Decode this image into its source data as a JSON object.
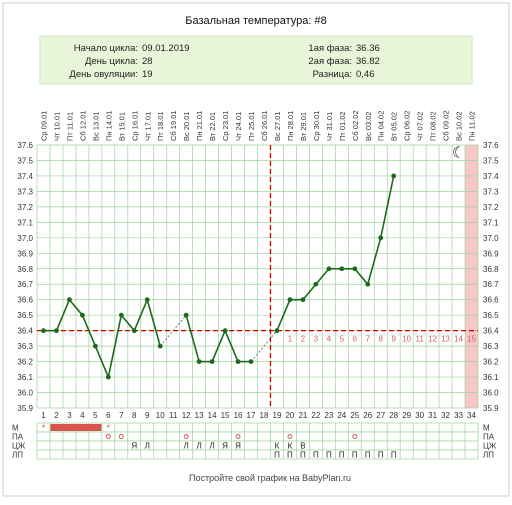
{
  "header": {
    "title": "Базальная температура: #8"
  },
  "summary": {
    "cycle_start_label": "Начало цикла:",
    "cycle_start": "09.01.2019",
    "cycle_day_label": "День цикла:",
    "cycle_day": "28",
    "ovulation_day_label": "День овуляции:",
    "ovulation_day": "19",
    "phase1_label": "1ая фаза:",
    "phase1": "36.36",
    "phase2_label": "2ая фаза:",
    "phase2": "36.82",
    "difference_label": "Разница:",
    "difference": "0,46"
  },
  "footer": {
    "text": "Постройте свой график на BabyPlan.ru"
  },
  "colors": {
    "line": "#1a6b1a",
    "grid": "#9fd09f",
    "coverline": "#cc0000",
    "phase2_numbers": "#d06060",
    "header_bg": "#e8f5d8",
    "period_fill": "#d9534f",
    "pink_band": "#f7c6c6"
  },
  "chart_data": {
    "type": "line",
    "ylim": [
      35.9,
      37.6
    ],
    "y_ticks": [
      "37.6",
      "37.5",
      "37.4",
      "37.3",
      "37.2",
      "37.1",
      "37.0",
      "36.9",
      "36.8",
      "36.7",
      "36.6",
      "36.5",
      "36.4",
      "36.3",
      "36.2",
      "36.1",
      "36.0",
      "35.9"
    ],
    "x_days": [
      "1",
      "2",
      "3",
      "4",
      "5",
      "6",
      "7",
      "8",
      "9",
      "10",
      "11",
      "12",
      "13",
      "14",
      "15",
      "16",
      "17",
      "18",
      "19",
      "20",
      "21",
      "22",
      "23",
      "24",
      "25",
      "26",
      "27",
      "28",
      "29",
      "30",
      "31",
      "32",
      "33",
      "34"
    ],
    "dates": [
      "Ср 09.01",
      "Чт 10.01",
      "Пт 11.01",
      "Сб 12.01",
      "Вс 13.01",
      "Пн 14.01",
      "Вт 15.01",
      "Ср 16.01",
      "Чт 17.01",
      "Пт 18.01",
      "Сб 19.01",
      "Вс 20.01",
      "Пн 21.01",
      "Вт 22.01",
      "Ср 23.01",
      "Чт 24.01",
      "Пт 25.01",
      "Сб 26.01",
      "Вс 27.01",
      "Пн 28.01",
      "Вт 29.01",
      "Ср 30.01",
      "Чт 31.01",
      "Пт 01.02",
      "Сб 02.02",
      "Вс 03.02",
      "Пн 04.02",
      "Вт 05.02",
      "Ср 06.02",
      "Чт 07.02",
      "Пт 08.02",
      "Сб 09.02",
      "Вс 10.02",
      "Пн 11.02"
    ],
    "temperatures": [
      36.4,
      36.4,
      36.6,
      36.5,
      36.3,
      36.1,
      36.5,
      36.4,
      36.6,
      36.3,
      null,
      36.5,
      36.2,
      36.2,
      36.4,
      36.2,
      36.2,
      null,
      36.4,
      36.6,
      36.6,
      36.7,
      36.8,
      36.8,
      36.8,
      36.7,
      37.0,
      37.4
    ],
    "gap_days": [
      11,
      18
    ],
    "coverline": 36.4,
    "ovulation_day": 19,
    "phase2_day_numbers": [
      "1",
      "2",
      "3",
      "4",
      "5",
      "6",
      "7",
      "8",
      "9",
      "10",
      "11",
      "12",
      "13",
      "14",
      "15"
    ],
    "highlight_day": 34,
    "moon_day": 33,
    "moon_temp": 37.55,
    "rows": {
      "labels": [
        "М",
        "ПА",
        "ЦЖ",
        "ЛП"
      ],
      "M": {
        "star_days": [
          1,
          6
        ],
        "period_days": [
          2,
          3,
          4,
          5
        ]
      },
      "PA": {
        "circle_days": [
          6,
          7,
          12,
          16,
          20,
          25
        ]
      },
      "CZH": {
        "marks": [
          {
            "day": 8,
            "text": "Я"
          },
          {
            "day": 9,
            "text": "Л"
          },
          {
            "day": 12,
            "text": "Л"
          },
          {
            "day": 13,
            "text": "Л"
          },
          {
            "day": 14,
            "text": "Л"
          },
          {
            "day": 15,
            "text": "Я"
          },
          {
            "day": 16,
            "text": "Я"
          },
          {
            "day": 19,
            "text": "К"
          },
          {
            "day": 20,
            "text": "К"
          },
          {
            "day": 21,
            "text": "В"
          }
        ]
      },
      "LP": {
        "text": "П",
        "days": [
          19,
          20,
          21,
          22,
          23,
          24,
          25,
          26,
          27,
          28
        ]
      }
    }
  }
}
